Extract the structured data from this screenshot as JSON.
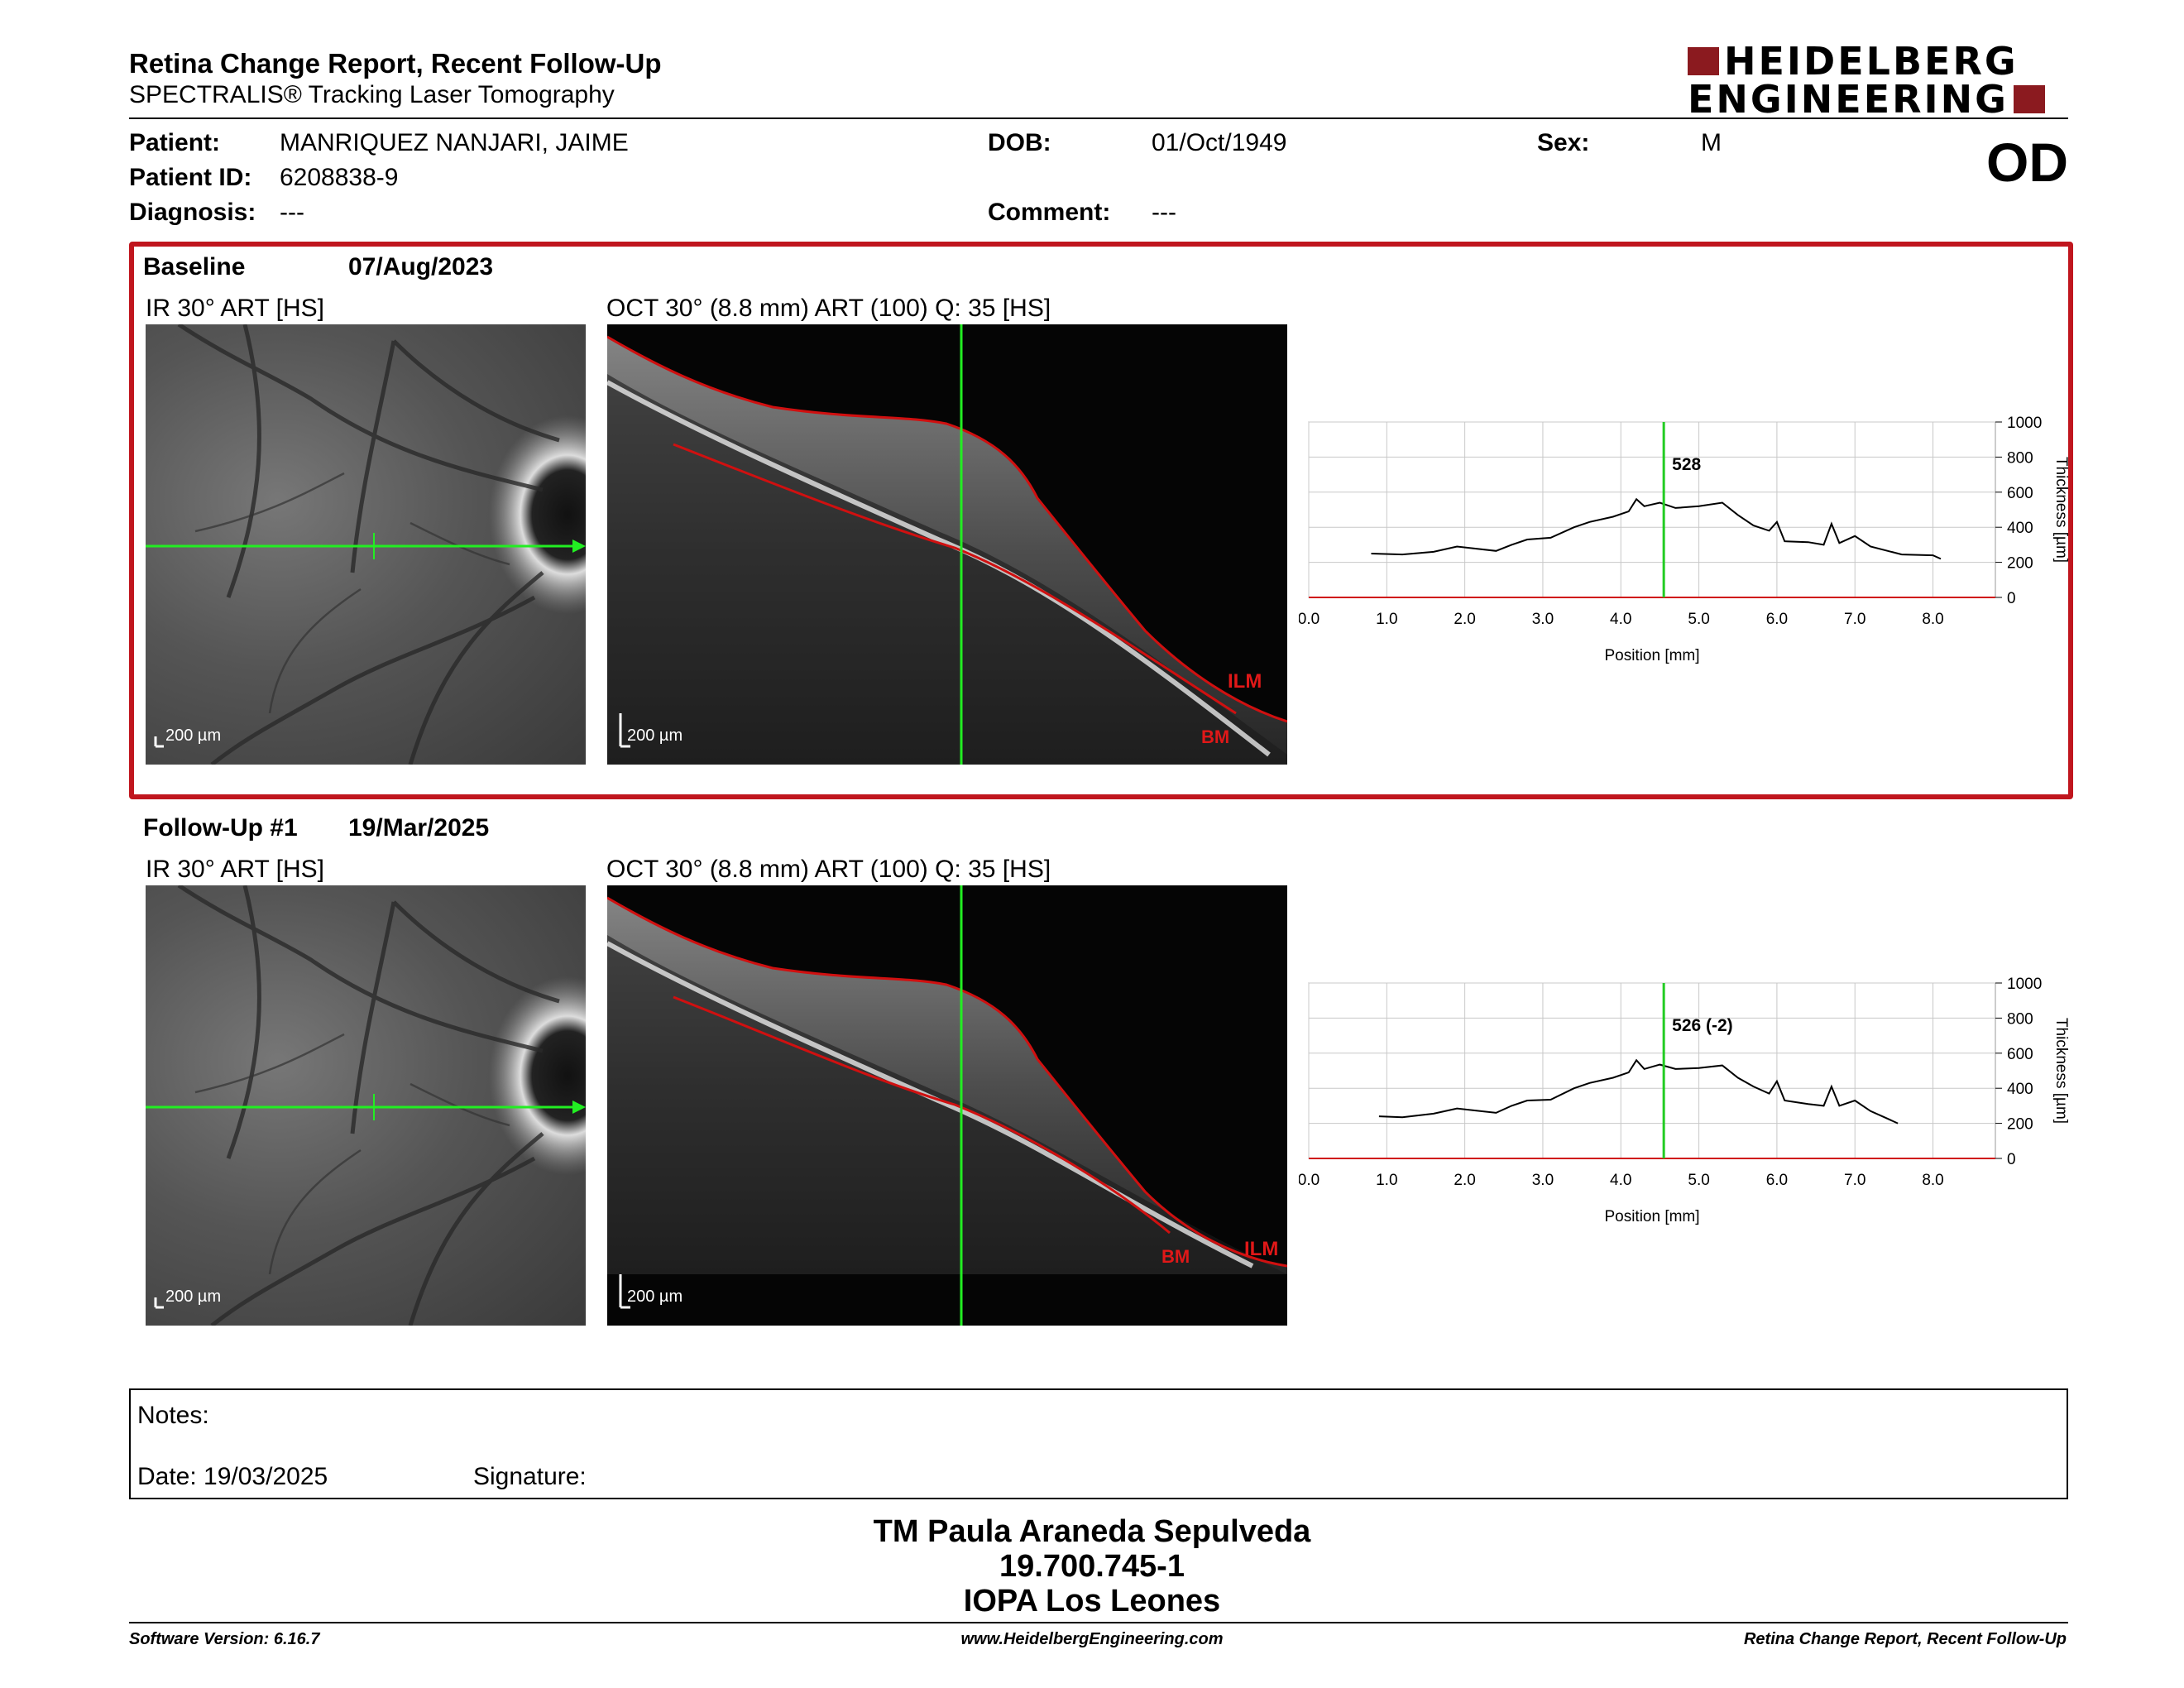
{
  "header": {
    "title": "Retina Change Report, Recent Follow-Up",
    "subtitle": "SPECTRALIS® Tracking Laser Tomography",
    "logo_line1": "HEIDELBERG",
    "logo_line2": "ENGINEERING",
    "eye": "OD"
  },
  "patient": {
    "patient_label": "Patient:",
    "patient_value": "MANRIQUEZ NANJARI, JAIME",
    "id_label": "Patient ID:",
    "id_value": "6208838-9",
    "diagnosis_label": "Diagnosis:",
    "diagnosis_value": "---",
    "dob_label": "DOB:",
    "dob_value": "01/Oct/1949",
    "comment_label": "Comment:",
    "comment_value": "---",
    "sex_label": "Sex:",
    "sex_value": "M"
  },
  "colors": {
    "accent": "#c0161e",
    "logo": "#8b1a1f",
    "scan_line": "#22ee22",
    "segmentation": "#d01010"
  },
  "baseline": {
    "label": "Baseline",
    "date": "07/Aug/2023",
    "ir_caption": "IR 30° ART [HS]",
    "oct_caption": "OCT 30° (8.8 mm) ART (100) Q: 35 [HS]",
    "ir_scale": "200 µm",
    "oct_scale": "200 µm",
    "ilm_label": "ILM",
    "bm_label": "BM",
    "marker_value": "528"
  },
  "followup": {
    "label": "Follow-Up #1",
    "date": "19/Mar/2025",
    "ir_caption": "IR 30° ART [HS]",
    "oct_caption": "OCT 30° (8.8 mm) ART (100) Q: 35 [HS]",
    "ir_scale": "200 µm",
    "oct_scale": "200 µm",
    "ilm_label": "ILM",
    "bm_label": "BM",
    "marker_value": "526 (-2)"
  },
  "chart_data": [
    {
      "type": "line",
      "xlabel": "Position [mm]",
      "ylabel": "Thickness [µm]",
      "xlim": [
        0,
        8.8
      ],
      "ylim": [
        0,
        1000
      ],
      "x_ticks": [
        "0.0",
        "1.0",
        "2.0",
        "3.0",
        "4.0",
        "5.0",
        "6.0",
        "7.0",
        "8.0"
      ],
      "y_ticks": [
        "0",
        "200",
        "400",
        "600",
        "800",
        "1000"
      ],
      "marker_x": 4.55,
      "marker_label": "528",
      "series": [
        {
          "x": [
            0.8,
            1.2,
            1.6,
            1.9,
            2.1,
            2.4,
            2.6,
            2.8,
            3.1,
            3.4,
            3.6,
            3.9,
            4.1,
            4.2,
            4.3,
            4.5,
            4.7,
            5.0,
            5.3,
            5.5,
            5.7,
            5.9,
            6.0,
            6.1,
            6.4,
            6.6,
            6.7,
            6.8,
            7.0,
            7.2,
            7.6,
            8.0,
            8.1
          ],
          "y": [
            250,
            245,
            260,
            290,
            280,
            265,
            300,
            330,
            340,
            400,
            430,
            460,
            490,
            560,
            520,
            540,
            510,
            520,
            540,
            470,
            410,
            380,
            430,
            320,
            315,
            300,
            420,
            310,
            350,
            290,
            245,
            240,
            220
          ]
        }
      ]
    },
    {
      "type": "line",
      "xlabel": "Position [mm]",
      "ylabel": "Thickness [µm]",
      "xlim": [
        0,
        8.8
      ],
      "ylim": [
        0,
        1000
      ],
      "x_ticks": [
        "0.0",
        "1.0",
        "2.0",
        "3.0",
        "4.0",
        "5.0",
        "6.0",
        "7.0",
        "8.0"
      ],
      "y_ticks": [
        "0",
        "200",
        "400",
        "600",
        "800",
        "1000"
      ],
      "marker_x": 4.55,
      "marker_label": "526 (-2)",
      "series": [
        {
          "x": [
            0.9,
            1.2,
            1.6,
            1.9,
            2.1,
            2.4,
            2.6,
            2.8,
            3.1,
            3.4,
            3.6,
            3.9,
            4.1,
            4.2,
            4.3,
            4.5,
            4.7,
            5.0,
            5.3,
            5.5,
            5.7,
            5.9,
            6.0,
            6.1,
            6.4,
            6.6,
            6.7,
            6.8,
            7.0,
            7.2,
            7.4,
            7.55
          ],
          "y": [
            240,
            235,
            255,
            285,
            275,
            260,
            300,
            330,
            335,
            400,
            430,
            460,
            490,
            560,
            510,
            535,
            510,
            515,
            530,
            460,
            410,
            370,
            440,
            330,
            310,
            300,
            410,
            300,
            330,
            270,
            230,
            200
          ]
        }
      ]
    }
  ],
  "notes": {
    "label": "Notes:",
    "date_text": "Date: 19/03/2025",
    "signature_label": "Signature:"
  },
  "signature_block": {
    "name": "TM Paula Araneda Sepulveda",
    "id": "19.700.745-1",
    "institution": "IOPA Los Leones"
  },
  "footer": {
    "software": "Software Version: 6.16.7",
    "website": "www.HeidelbergEngineering.com",
    "report_name": "Retina Change Report, Recent Follow-Up"
  }
}
